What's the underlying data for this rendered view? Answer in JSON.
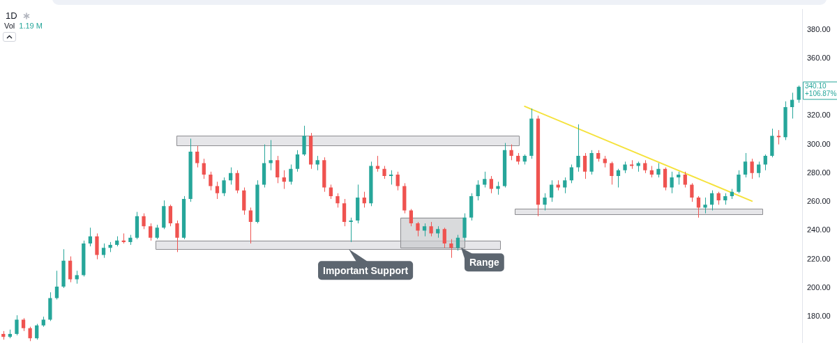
{
  "chart_data": {
    "type": "candlestick",
    "title": "1D",
    "categories": [
      null,
      null,
      null,
      null,
      null,
      null,
      null,
      null,
      null,
      null,
      null,
      null,
      null,
      null,
      null,
      null,
      null,
      null,
      null,
      null,
      null,
      null,
      null,
      null,
      null,
      null,
      null,
      null,
      null,
      null,
      null,
      null,
      null,
      null,
      null,
      null,
      null,
      null,
      null,
      null,
      null,
      null,
      null,
      null,
      null,
      null,
      null,
      null,
      null,
      null,
      null,
      null,
      null,
      null,
      null,
      null,
      null,
      null,
      null,
      null,
      null,
      null,
      null,
      null,
      null,
      null,
      null,
      null,
      null,
      null,
      null,
      null,
      null,
      null,
      null,
      null,
      null,
      null,
      null,
      null,
      null,
      null,
      null,
      null,
      null,
      null,
      null,
      null,
      null,
      null,
      null,
      null,
      null,
      null,
      null,
      null,
      null,
      null,
      null,
      null,
      null,
      null,
      null,
      null,
      null,
      null,
      null,
      null,
      null,
      null,
      null,
      null,
      null,
      null,
      null,
      null,
      null,
      null,
      null,
      null
    ],
    "ohlc": [
      [
        168,
        170,
        164,
        166
      ],
      [
        166,
        171,
        165,
        168
      ],
      [
        168,
        181,
        167,
        178
      ],
      [
        178,
        179,
        170,
        172
      ],
      [
        172,
        173,
        163,
        165
      ],
      [
        165,
        175,
        164,
        174
      ],
      [
        174,
        180,
        173,
        178
      ],
      [
        178,
        197,
        177,
        193
      ],
      [
        193,
        212,
        192,
        201
      ],
      [
        201,
        227,
        200,
        219
      ],
      [
        219,
        222,
        204,
        206
      ],
      [
        206,
        212,
        203,
        209
      ],
      [
        209,
        233,
        208,
        231
      ],
      [
        231,
        242,
        229,
        236
      ],
      [
        236,
        238,
        220,
        223
      ],
      [
        223,
        231,
        221,
        228
      ],
      [
        228,
        232,
        225,
        230
      ],
      [
        230,
        236,
        229,
        233
      ],
      [
        233,
        238,
        231,
        232
      ],
      [
        232,
        237,
        230,
        235
      ],
      [
        235,
        253,
        234,
        250
      ],
      [
        250,
        252,
        241,
        243
      ],
      [
        243,
        245,
        233,
        235
      ],
      [
        235,
        244,
        234,
        242
      ],
      [
        242,
        261,
        241,
        257
      ],
      [
        257,
        258,
        243,
        245
      ],
      [
        245,
        247,
        225,
        235
      ],
      [
        235,
        264,
        234,
        262
      ],
      [
        262,
        304,
        260,
        295
      ],
      [
        295,
        299,
        284,
        287
      ],
      [
        287,
        290,
        276,
        279
      ],
      [
        279,
        281,
        268,
        271
      ],
      [
        271,
        274,
        262,
        266
      ],
      [
        266,
        277,
        264,
        275
      ],
      [
        275,
        284,
        272,
        280
      ],
      [
        280,
        282,
        266,
        268
      ],
      [
        268,
        270,
        251,
        254
      ],
      [
        254,
        256,
        231,
        246
      ],
      [
        246,
        275,
        245,
        272
      ],
      [
        272,
        300,
        270,
        287
      ],
      [
        287,
        303,
        282,
        289
      ],
      [
        289,
        292,
        273,
        277
      ],
      [
        277,
        282,
        269,
        274
      ],
      [
        274,
        286,
        272,
        283
      ],
      [
        283,
        296,
        281,
        293
      ],
      [
        293,
        313,
        292,
        306
      ],
      [
        306,
        308,
        283,
        286
      ],
      [
        286,
        292,
        282,
        289
      ],
      [
        289,
        291,
        267,
        270
      ],
      [
        270,
        272,
        262,
        264
      ],
      [
        264,
        266,
        256,
        259
      ],
      [
        259,
        262,
        243,
        246
      ],
      [
        246,
        249,
        232,
        247
      ],
      [
        247,
        272,
        245,
        263
      ],
      [
        263,
        267,
        256,
        259
      ],
      [
        259,
        288,
        257,
        285
      ],
      [
        285,
        292,
        281,
        283
      ],
      [
        283,
        285,
        276,
        278
      ],
      [
        278,
        282,
        272,
        279
      ],
      [
        279,
        281,
        268,
        271
      ],
      [
        271,
        273,
        252,
        254
      ],
      [
        254,
        255,
        243,
        245
      ],
      [
        245,
        246,
        236,
        240
      ],
      [
        240,
        245,
        236,
        243
      ],
      [
        243,
        246,
        236,
        238
      ],
      [
        238,
        243,
        235,
        241
      ],
      [
        241,
        242,
        228,
        231
      ],
      [
        231,
        234,
        221,
        228
      ],
      [
        228,
        237,
        226,
        235
      ],
      [
        235,
        252,
        233,
        249
      ],
      [
        249,
        266,
        247,
        264
      ],
      [
        264,
        275,
        261,
        272
      ],
      [
        272,
        281,
        270,
        276
      ],
      [
        276,
        278,
        266,
        269
      ],
      [
        269,
        274,
        265,
        271
      ],
      [
        271,
        301,
        270,
        296
      ],
      [
        296,
        300,
        289,
        292
      ],
      [
        292,
        294,
        286,
        288
      ],
      [
        288,
        293,
        286,
        292
      ],
      [
        292,
        325,
        290,
        318
      ],
      [
        318,
        320,
        250,
        258
      ],
      [
        258,
        266,
        254,
        263
      ],
      [
        263,
        275,
        260,
        272
      ],
      [
        272,
        275,
        268,
        270
      ],
      [
        270,
        277,
        266,
        275
      ],
      [
        275,
        286,
        273,
        284
      ],
      [
        284,
        314,
        281,
        292
      ],
      [
        292,
        294,
        276,
        281
      ],
      [
        281,
        296,
        279,
        294
      ],
      [
        294,
        296,
        288,
        290
      ],
      [
        290,
        292,
        284,
        287
      ],
      [
        287,
        288,
        272,
        278
      ],
      [
        278,
        283,
        270,
        282
      ],
      [
        282,
        288,
        280,
        286
      ],
      [
        286,
        289,
        283,
        285
      ],
      [
        285,
        288,
        281,
        287
      ],
      [
        287,
        289,
        280,
        282
      ],
      [
        282,
        285,
        277,
        279
      ],
      [
        279,
        287,
        277,
        283
      ],
      [
        283,
        284,
        268,
        270
      ],
      [
        270,
        281,
        266,
        277
      ],
      [
        277,
        281,
        272,
        279
      ],
      [
        279,
        281,
        270,
        272
      ],
      [
        272,
        273,
        260,
        263
      ],
      [
        263,
        264,
        249,
        256
      ],
      [
        256,
        263,
        252,
        258
      ],
      [
        258,
        268,
        254,
        266
      ],
      [
        266,
        267,
        258,
        261
      ],
      [
        261,
        266,
        258,
        264
      ],
      [
        264,
        269,
        262,
        267
      ],
      [
        267,
        282,
        266,
        279
      ],
      [
        279,
        294,
        277,
        288
      ],
      [
        288,
        290,
        276,
        280
      ],
      [
        280,
        288,
        277,
        286
      ],
      [
        286,
        293,
        282,
        292
      ],
      [
        292,
        311,
        291,
        306
      ],
      [
        306,
        310,
        300,
        305
      ],
      [
        305,
        330,
        303,
        326
      ],
      [
        326,
        336,
        318,
        331
      ],
      [
        331,
        341,
        329,
        340.1
      ]
    ],
    "colors": [
      "#ef5350",
      "#26a69a",
      "#26a69a",
      "#ef5350",
      "#ef5350",
      "#26a69a",
      "#26a69a",
      "#26a69a",
      "#26a69a",
      "#26a69a",
      "#ef5350",
      "#26a69a",
      "#26a69a",
      "#26a69a",
      "#ef5350",
      "#26a69a",
      "#26a69a",
      "#26a69a",
      "#ef5350",
      "#26a69a",
      "#26a69a",
      "#ef5350",
      "#ef5350",
      "#26a69a",
      "#26a69a",
      "#ef5350",
      "#ef5350",
      "#26a69a",
      "#26a69a",
      "#ef5350",
      "#ef5350",
      "#ef5350",
      "#ef5350",
      "#26a69a",
      "#26a69a",
      "#ef5350",
      "#ef5350",
      "#ef5350",
      "#26a69a",
      "#26a69a",
      "#26a69a",
      "#ef5350",
      "#ef5350",
      "#26a69a",
      "#26a69a",
      "#26a69a",
      "#ef5350",
      "#26a69a",
      "#ef5350",
      "#ef5350",
      "#ef5350",
      "#ef5350",
      "#26a69a",
      "#26a69a",
      "#ef5350",
      "#26a69a",
      "#ef5350",
      "#ef5350",
      "#26a69a",
      "#ef5350",
      "#ef5350",
      "#ef5350",
      "#ef5350",
      "#26a69a",
      "#ef5350",
      "#26a69a",
      "#ef5350",
      "#ef5350",
      "#26a69a",
      "#26a69a",
      "#26a69a",
      "#26a69a",
      "#26a69a",
      "#ef5350",
      "#26a69a",
      "#26a69a",
      "#ef5350",
      "#ef5350",
      "#26a69a",
      "#26a69a",
      "#ef5350",
      "#26a69a",
      "#26a69a",
      "#ef5350",
      "#26a69a",
      "#26a69a",
      "#26a69a",
      "#ef5350",
      "#26a69a",
      "#ef5350",
      "#ef5350",
      "#ef5350",
      "#26a69a",
      "#26a69a",
      "#ef5350",
      "#26a69a",
      "#ef5350",
      "#ef5350",
      "#26a69a",
      "#ef5350",
      "#26a69a",
      "#26a69a",
      "#ef5350",
      "#ef5350",
      "#ef5350",
      "#26a69a",
      "#26a69a",
      "#ef5350",
      "#26a69a",
      "#26a69a",
      "#26a69a",
      "#26a69a",
      "#ef5350",
      "#26a69a",
      "#26a69a",
      "#26a69a",
      "#ef5350",
      "#26a69a",
      "#26a69a",
      "#26a69a"
    ],
    "series": [
      {
        "type": "line",
        "color": "#f5e23c",
        "values": [
          null,
          null,
          null,
          null,
          null,
          null,
          null,
          null,
          null,
          null,
          null,
          null,
          null,
          null,
          null,
          null,
          null,
          null,
          null,
          null,
          null,
          null,
          null,
          null,
          null,
          null,
          null,
          null,
          null,
          null,
          null,
          null,
          null,
          null,
          null,
          null,
          null,
          null,
          null,
          null,
          null,
          null,
          null,
          null,
          null,
          null,
          null,
          null,
          null,
          null,
          null,
          null,
          null,
          null,
          null,
          null,
          null,
          null,
          null,
          null,
          null,
          null,
          null,
          null,
          null,
          null,
          null,
          null,
          null,
          null,
          null,
          null,
          null,
          null,
          null,
          null,
          null,
          null,
          326.5,
          null,
          null,
          null,
          null,
          null,
          null,
          null,
          null,
          null,
          null,
          null,
          null,
          null,
          null,
          null,
          null,
          null,
          null,
          null,
          null,
          null,
          null,
          null,
          null,
          null,
          null,
          null,
          null,
          null,
          null,
          null,
          null,
          null,
          260.5,
          null,
          null,
          null,
          null,
          null,
          null,
          null
        ]
      }
    ],
    "bands": [
      {
        "axis": "y",
        "from": 299,
        "to": 306,
        "color": "#dcdcdf"
      },
      {
        "axis": "y",
        "from": 227,
        "to": 233,
        "color": "#dcdcdf",
        "label": "Important Support"
      },
      {
        "axis": "y",
        "from": 228,
        "to": 249,
        "color": "#c9cacd",
        "label": "Range"
      },
      {
        "axis": "y",
        "from": 251,
        "to": 255,
        "color": "#dcdcdf"
      }
    ],
    "annotations": [
      "Vol",
      "1.19 M",
      "340.10\n+106.87%"
    ],
    "ylim": [
      162,
      394
    ],
    "yticks": [
      {
        "value": 180,
        "label": "180.00"
      },
      {
        "value": 200,
        "label": "200.00"
      },
      {
        "value": 220,
        "label": "220.00"
      },
      {
        "value": 240,
        "label": "240.00"
      },
      {
        "value": 260,
        "label": "260.00"
      },
      {
        "value": 280,
        "label": "280.00"
      },
      {
        "value": 300,
        "label": "300.00"
      },
      {
        "value": 320,
        "label": "320.00"
      },
      {
        "value": 360,
        "label": "360.00"
      },
      {
        "value": 380,
        "label": "380.00"
      }
    ],
    "tick_labels": "y"
  }
}
